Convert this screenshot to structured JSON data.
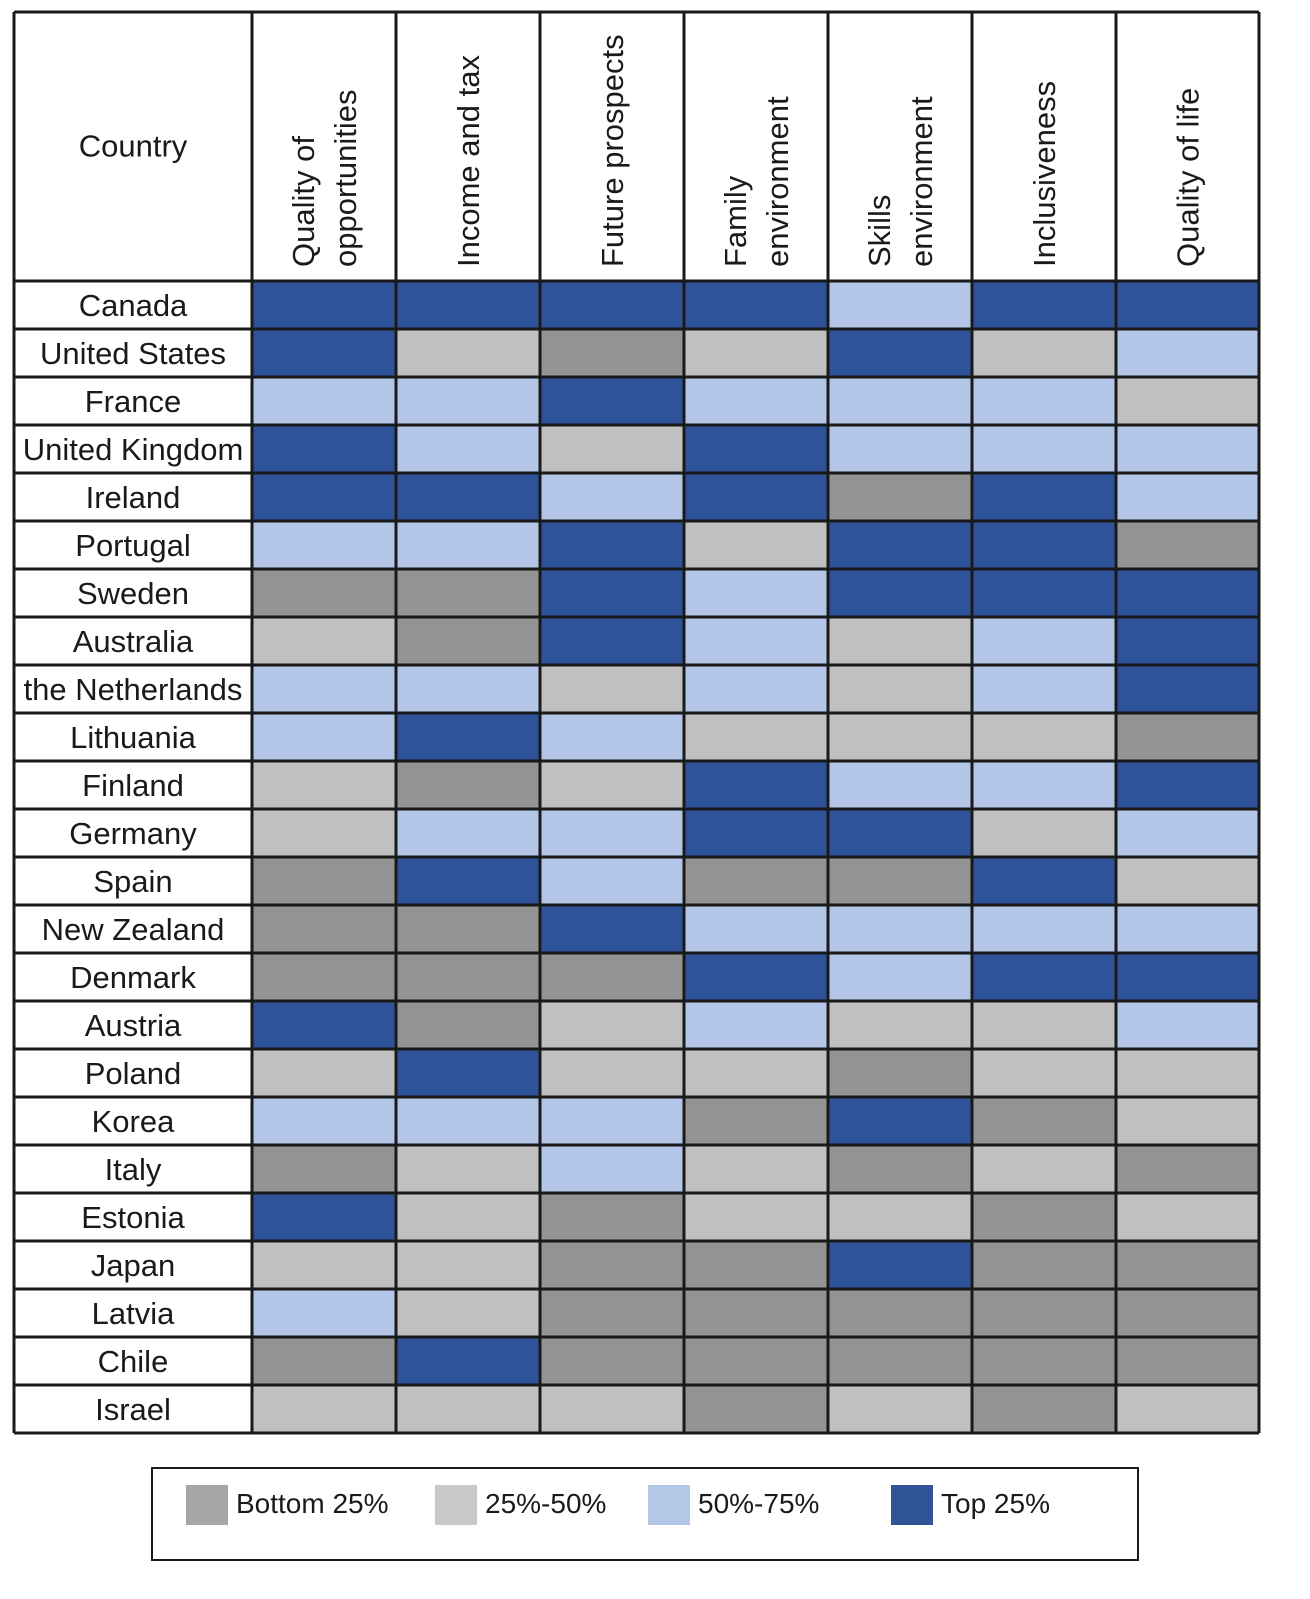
{
  "chart_data": {
    "type": "heatmap",
    "row_header": "Country",
    "columns": [
      [
        "Quality of",
        "opportunities"
      ],
      [
        "Income and tax"
      ],
      [
        "Future prospects"
      ],
      [
        "Family",
        "environment"
      ],
      [
        "Skills",
        "environment"
      ],
      [
        "Inclusiveness"
      ],
      [
        "Quality of life"
      ]
    ],
    "rows": [
      "Canada",
      "United States",
      "France",
      "United Kingdom",
      "Ireland",
      "Portugal",
      "Sweden",
      "Australia",
      "the Netherlands",
      "Lithuania",
      "Finland",
      "Germany",
      "Spain",
      "New Zealand",
      "Denmark",
      "Austria",
      "Poland",
      "Korea",
      "Italy",
      "Estonia",
      "Japan",
      "Latvia",
      "Chile",
      "Israel"
    ],
    "quartiles_note": "1 = Bottom 25%, 2 = 25%-50%, 3 = 50%-75%, 4 = Top 25%",
    "values": [
      [
        4,
        4,
        4,
        4,
        3,
        4,
        4
      ],
      [
        4,
        2,
        1,
        2,
        4,
        2,
        3
      ],
      [
        3,
        3,
        4,
        3,
        3,
        3,
        2
      ],
      [
        4,
        3,
        2,
        4,
        3,
        3,
        3
      ],
      [
        4,
        4,
        3,
        4,
        1,
        4,
        3
      ],
      [
        3,
        3,
        4,
        2,
        4,
        4,
        1
      ],
      [
        1,
        1,
        4,
        3,
        4,
        4,
        4
      ],
      [
        2,
        1,
        4,
        3,
        2,
        3,
        4
      ],
      [
        3,
        3,
        2,
        3,
        2,
        3,
        4
      ],
      [
        3,
        4,
        3,
        2,
        2,
        2,
        1
      ],
      [
        2,
        1,
        2,
        4,
        3,
        3,
        4
      ],
      [
        2,
        3,
        3,
        4,
        4,
        2,
        3
      ],
      [
        1,
        4,
        3,
        1,
        1,
        4,
        2
      ],
      [
        1,
        1,
        4,
        3,
        3,
        3,
        3
      ],
      [
        1,
        1,
        1,
        4,
        3,
        4,
        4
      ],
      [
        4,
        1,
        2,
        3,
        2,
        2,
        3
      ],
      [
        2,
        4,
        2,
        2,
        1,
        2,
        2
      ],
      [
        3,
        3,
        3,
        1,
        4,
        1,
        2
      ],
      [
        1,
        2,
        3,
        2,
        1,
        2,
        1
      ],
      [
        4,
        2,
        1,
        2,
        2,
        1,
        2
      ],
      [
        2,
        2,
        1,
        1,
        4,
        1,
        1
      ],
      [
        3,
        2,
        1,
        1,
        1,
        1,
        1
      ],
      [
        1,
        4,
        1,
        1,
        1,
        1,
        1
      ],
      [
        2,
        2,
        2,
        1,
        2,
        1,
        2
      ]
    ],
    "legend": [
      {
        "level": 1,
        "label": "Bottom 25%",
        "color": "#a6a6a6"
      },
      {
        "level": 2,
        "label": "25%-50%",
        "color": "#c8c8c8"
      },
      {
        "level": 3,
        "label": "50%-75%",
        "color": "#b4c7e7"
      },
      {
        "level": 4,
        "label": "Top 25%",
        "color": "#2f5597"
      }
    ],
    "cell_colors": {
      "1": "#939393",
      "2": "#c0c0c0",
      "3": "#b4c6e7",
      "4": "#2e5399"
    },
    "legend_placement": "bottom"
  }
}
